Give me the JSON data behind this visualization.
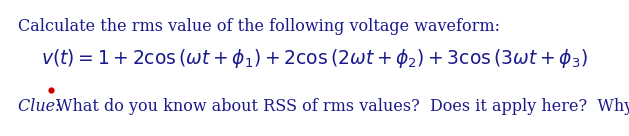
{
  "background_color": "#ffffff",
  "line1": "Calculate the rms value of the following voltage waveform:",
  "text_color": "#1a1a8c",
  "line1_fontsize": 11.5,
  "equation": "$v(t) = 1 + 2\\cos\\left(\\omega t + \\phi_1\\right) + 2\\cos\\left(2\\omega t + \\phi_2\\right) + 3\\cos\\left(3\\omega t + \\phi_3\\right)$",
  "equation_fontsize": 13.5,
  "clue_italic": "Clue: ",
  "clue_rest": "What do you know about RSS of rms values?  Does it apply here?  Why?",
  "clue_fontsize": 11.5,
  "dot_color": "#cc0000",
  "dot_size": 3.5
}
